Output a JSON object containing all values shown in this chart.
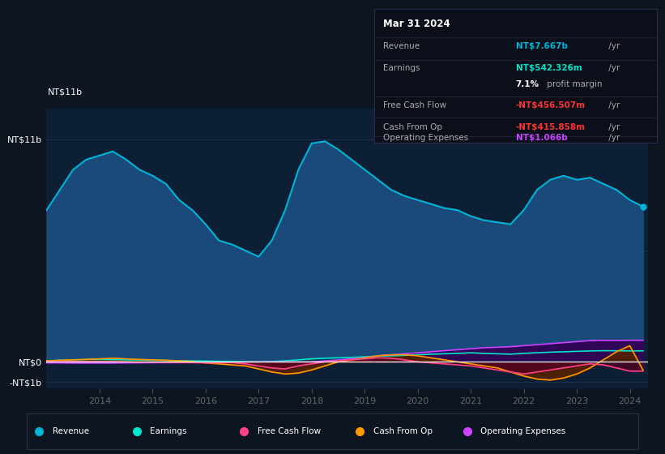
{
  "bg_color": "#0d1521",
  "plot_bg_color": "#0d1f35",
  "grid_color": "#1e3a5f",
  "zero_line_color": "#ffffff",
  "years": [
    2013.0,
    2013.25,
    2013.5,
    2013.75,
    2014.0,
    2014.25,
    2014.5,
    2014.75,
    2015.0,
    2015.25,
    2015.5,
    2015.75,
    2016.0,
    2016.25,
    2016.5,
    2016.75,
    2017.0,
    2017.25,
    2017.5,
    2017.75,
    2018.0,
    2018.25,
    2018.5,
    2018.75,
    2019.0,
    2019.25,
    2019.5,
    2019.75,
    2020.0,
    2020.25,
    2020.5,
    2020.75,
    2021.0,
    2021.25,
    2021.5,
    2021.75,
    2022.0,
    2022.25,
    2022.5,
    2022.75,
    2023.0,
    2023.25,
    2023.5,
    2023.75,
    2024.0,
    2024.25
  ],
  "revenue": [
    7.5,
    8.5,
    9.5,
    10.0,
    10.2,
    10.4,
    10.0,
    9.5,
    9.2,
    8.8,
    8.0,
    7.5,
    6.8,
    6.0,
    5.8,
    5.5,
    5.2,
    6.0,
    7.5,
    9.5,
    10.8,
    10.9,
    10.5,
    10.0,
    9.5,
    9.0,
    8.5,
    8.2,
    8.0,
    7.8,
    7.6,
    7.5,
    7.2,
    7.0,
    6.9,
    6.8,
    7.5,
    8.5,
    9.0,
    9.2,
    9.0,
    9.1,
    8.8,
    8.5,
    8.0,
    7.667
  ],
  "earnings": [
    0.05,
    0.08,
    0.1,
    0.12,
    0.12,
    0.11,
    0.1,
    0.09,
    0.08,
    0.07,
    0.06,
    0.05,
    0.04,
    0.03,
    0.02,
    0.01,
    0.0,
    0.02,
    0.05,
    0.1,
    0.15,
    0.18,
    0.2,
    0.22,
    0.25,
    0.28,
    0.3,
    0.32,
    0.35,
    0.38,
    0.4,
    0.42,
    0.45,
    0.42,
    0.4,
    0.38,
    0.42,
    0.45,
    0.48,
    0.5,
    0.52,
    0.54,
    0.55,
    0.55,
    0.54,
    0.542
  ],
  "free_cash_flow": [
    0.0,
    0.01,
    0.02,
    0.02,
    0.02,
    0.01,
    0.0,
    -0.02,
    -0.02,
    -0.03,
    -0.03,
    -0.04,
    -0.05,
    -0.05,
    -0.04,
    -0.1,
    -0.2,
    -0.3,
    -0.35,
    -0.2,
    -0.1,
    0.0,
    0.05,
    0.1,
    0.15,
    0.2,
    0.18,
    0.1,
    0.0,
    -0.05,
    -0.1,
    -0.15,
    -0.2,
    -0.3,
    -0.4,
    -0.5,
    -0.6,
    -0.5,
    -0.4,
    -0.3,
    -0.2,
    -0.1,
    -0.15,
    -0.3,
    -0.456,
    -0.456
  ],
  "cash_from_op": [
    0.05,
    0.08,
    0.1,
    0.12,
    0.15,
    0.18,
    0.15,
    0.12,
    0.1,
    0.08,
    0.05,
    0.02,
    -0.05,
    -0.1,
    -0.15,
    -0.2,
    -0.35,
    -0.5,
    -0.6,
    -0.55,
    -0.4,
    -0.2,
    0.0,
    0.1,
    0.2,
    0.3,
    0.35,
    0.35,
    0.3,
    0.2,
    0.1,
    0.0,
    -0.1,
    -0.2,
    -0.3,
    -0.5,
    -0.7,
    -0.85,
    -0.9,
    -0.8,
    -0.6,
    -0.3,
    0.1,
    0.5,
    0.8,
    -0.416
  ],
  "op_expenses": [
    -0.05,
    -0.05,
    -0.06,
    -0.06,
    -0.06,
    -0.06,
    -0.05,
    -0.05,
    -0.04,
    -0.04,
    -0.04,
    -0.03,
    -0.03,
    -0.02,
    -0.02,
    -0.01,
    0.0,
    0.0,
    0.0,
    0.0,
    0.0,
    0.05,
    0.1,
    0.15,
    0.2,
    0.3,
    0.35,
    0.4,
    0.45,
    0.5,
    0.55,
    0.6,
    0.65,
    0.7,
    0.72,
    0.75,
    0.8,
    0.85,
    0.9,
    0.95,
    1.0,
    1.05,
    1.06,
    1.06,
    1.066,
    1.066
  ],
  "revenue_color": "#00b4d8",
  "revenue_fill": "#1a4a7a",
  "earnings_color": "#00e5cc",
  "earnings_fill": "#004040",
  "free_cash_flow_color": "#ff4488",
  "free_cash_flow_fill": "#550022",
  "cash_from_op_color": "#ff9900",
  "cash_from_op_fill": "#552200",
  "op_expenses_color": "#cc44ff",
  "op_expenses_fill": "#330055",
  "ylim_min": -1.3,
  "ylim_max": 12.5,
  "xlabel_years": [
    2014,
    2015,
    2016,
    2017,
    2018,
    2019,
    2020,
    2021,
    2022,
    2023,
    2024
  ],
  "tooltip_text": {
    "date": "Mar 31 2024",
    "revenue_label": "Revenue",
    "revenue_val": "NT$7.667b",
    "revenue_unit": " /yr",
    "earnings_label": "Earnings",
    "earnings_val": "NT$542.326m",
    "earnings_unit": " /yr",
    "margin_val": "7.1%",
    "margin_text": " profit margin",
    "fcf_label": "Free Cash Flow",
    "fcf_val": "-NT$456.507m",
    "fcf_unit": " /yr",
    "cfop_label": "Cash From Op",
    "cfop_val": "-NT$415.858m",
    "cfop_unit": " /yr",
    "opex_label": "Operating Expenses",
    "opex_val": "NT$1.066b",
    "opex_unit": " /yr"
  },
  "legend_items": [
    {
      "label": "Revenue",
      "color": "#00b4d8"
    },
    {
      "label": "Earnings",
      "color": "#00e5cc"
    },
    {
      "label": "Free Cash Flow",
      "color": "#ff4488"
    },
    {
      "label": "Cash From Op",
      "color": "#ff9900"
    },
    {
      "label": "Operating Expenses",
      "color": "#cc44ff"
    }
  ]
}
